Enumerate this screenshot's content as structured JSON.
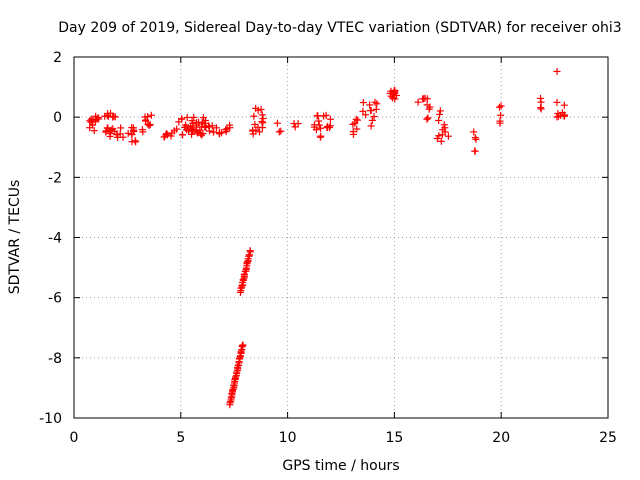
{
  "chart_data": {
    "type": "scatter",
    "title": "Day 209 of 2019, Sidereal Day-to-day VTEC variation (SDTVAR) for receiver ohi3",
    "xlabel": "GPS time / hours",
    "ylabel": "SDTVAR / TECUs",
    "xlim": [
      0,
      25
    ],
    "ylim": [
      -10,
      2
    ],
    "xticks": [
      "0",
      "5",
      "10",
      "15",
      "20",
      "25"
    ],
    "yticks": [
      "-10",
      "-8",
      "-6",
      "-4",
      "-2",
      "0",
      "2"
    ],
    "grid": true,
    "marker": "plus",
    "color": "#ff0000",
    "series": [
      {
        "name": "SDTVAR",
        "clusters": [
          {
            "x": [
              0.7,
              1.2
            ],
            "y": [
              -0.5,
              0.05
            ],
            "n": 14
          },
          {
            "x": [
              1.4,
              2.0
            ],
            "y": [
              0.0,
              0.2
            ],
            "n": 8
          },
          {
            "x": [
              1.4,
              2.3
            ],
            "y": [
              -0.7,
              -0.35
            ],
            "n": 16
          },
          {
            "x": [
              2.3,
              2.9
            ],
            "y": [
              -0.6,
              -0.3
            ],
            "n": 8
          },
          {
            "x": [
              2.7,
              2.9
            ],
            "y": [
              -0.9,
              -0.75
            ],
            "n": 3
          },
          {
            "x": [
              3.2,
              3.9
            ],
            "y": [
              -0.5,
              0.1
            ],
            "n": 10
          },
          {
            "x": [
              4.2,
              5.0
            ],
            "y": [
              -0.7,
              -0.15
            ],
            "n": 10
          },
          {
            "x": [
              5.0,
              6.2
            ],
            "y": [
              -0.6,
              0.0
            ],
            "n": 40
          },
          {
            "x": [
              6.2,
              7.3
            ],
            "y": [
              -0.55,
              -0.25
            ],
            "n": 16
          },
          {
            "x": [
              8.3,
              8.9
            ],
            "y": [
              -0.6,
              0.3
            ],
            "n": 16
          },
          {
            "x": [
              9.5,
              9.7
            ],
            "y": [
              -0.6,
              -0.2
            ],
            "n": 3
          },
          {
            "x": [
              10.3,
              10.5
            ],
            "y": [
              -0.35,
              -0.2
            ],
            "n": 3
          },
          {
            "x": [
              11.2,
              12.1
            ],
            "y": [
              -0.75,
              0.1
            ],
            "n": 18
          },
          {
            "x": [
              13.0,
              13.5
            ],
            "y": [
              -0.6,
              -0.05
            ],
            "n": 7
          },
          {
            "x": [
              13.5,
              14.3
            ],
            "y": [
              -0.3,
              0.55
            ],
            "n": 12
          },
          {
            "x": [
              14.8,
              15.1
            ],
            "y": [
              0.55,
              0.9
            ],
            "n": 12
          },
          {
            "x": [
              16.0,
              16.9
            ],
            "y": [
              0.25,
              0.65
            ],
            "n": 8
          },
          {
            "x": [
              16.5,
              16.6
            ],
            "y": [
              -0.1,
              0.0
            ],
            "n": 2
          },
          {
            "x": [
              17.0,
              17.6
            ],
            "y": [
              -0.9,
              0.25
            ],
            "n": 12
          },
          {
            "x": [
              18.7,
              18.9
            ],
            "y": [
              -1.25,
              -0.35
            ],
            "n": 5
          },
          {
            "x": [
              19.9,
              20.0
            ],
            "y": [
              -0.2,
              0.6
            ],
            "n": 5
          },
          {
            "x": [
              21.8,
              21.9
            ],
            "y": [
              0.25,
              0.65
            ],
            "n": 4
          },
          {
            "x": [
              22.6,
              22.7
            ],
            "y": [
              1.52,
              1.52
            ],
            "n": 1
          },
          {
            "x": [
              22.6,
              23.0
            ],
            "y": [
              0.0,
              0.55
            ],
            "n": 10
          }
        ],
        "streaks": [
          {
            "x": [
              7.3,
              7.9
            ],
            "y": [
              -9.55,
              -7.55
            ],
            "n": 40
          },
          {
            "x": [
              7.8,
              8.25
            ],
            "y": [
              -5.8,
              -4.45
            ],
            "n": 28
          }
        ]
      }
    ]
  }
}
